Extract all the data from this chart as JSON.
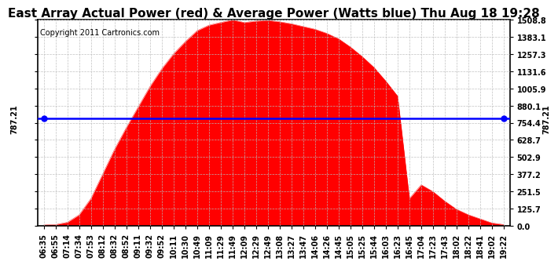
{
  "title": "East Array Actual Power (red) & Average Power (Watts blue) Thu Aug 18 19:28",
  "copyright": "Copyright 2011 Cartronics.com",
  "yticks": [
    0.0,
    125.7,
    251.5,
    377.2,
    502.9,
    628.7,
    754.4,
    880.1,
    1005.9,
    1131.6,
    1257.3,
    1383.1,
    1508.8
  ],
  "ymax": 1508.8,
  "ymin": 0.0,
  "average_power": 787.21,
  "avg_label": "787.21",
  "fill_color": "#ff0000",
  "line_color": "#0000ff",
  "background_color": "#ffffff",
  "grid_color": "#bbbbbb",
  "xtick_labels": [
    "06:35",
    "06:55",
    "07:14",
    "07:34",
    "07:53",
    "08:12",
    "08:32",
    "08:52",
    "09:11",
    "09:32",
    "09:52",
    "10:11",
    "10:30",
    "10:49",
    "11:09",
    "11:29",
    "11:49",
    "12:09",
    "12:29",
    "12:49",
    "13:08",
    "13:27",
    "13:47",
    "14:06",
    "14:26",
    "14:45",
    "15:05",
    "15:25",
    "15:44",
    "16:03",
    "16:23",
    "16:45",
    "17:04",
    "17:23",
    "17:43",
    "18:02",
    "18:22",
    "18:41",
    "19:02",
    "19:22"
  ],
  "power_values": [
    5,
    8,
    25,
    80,
    200,
    380,
    560,
    720,
    870,
    1020,
    1150,
    1260,
    1350,
    1430,
    1470,
    1490,
    1508,
    1490,
    1500,
    1505,
    1495,
    1480,
    1460,
    1440,
    1410,
    1370,
    1310,
    1240,
    1160,
    1060,
    950,
    200,
    300,
    250,
    180,
    120,
    80,
    50,
    20,
    8
  ],
  "title_fontsize": 11,
  "copyright_fontsize": 7,
  "tick_fontsize": 7,
  "avg_label_fontsize": 7,
  "title_color": "#000000"
}
